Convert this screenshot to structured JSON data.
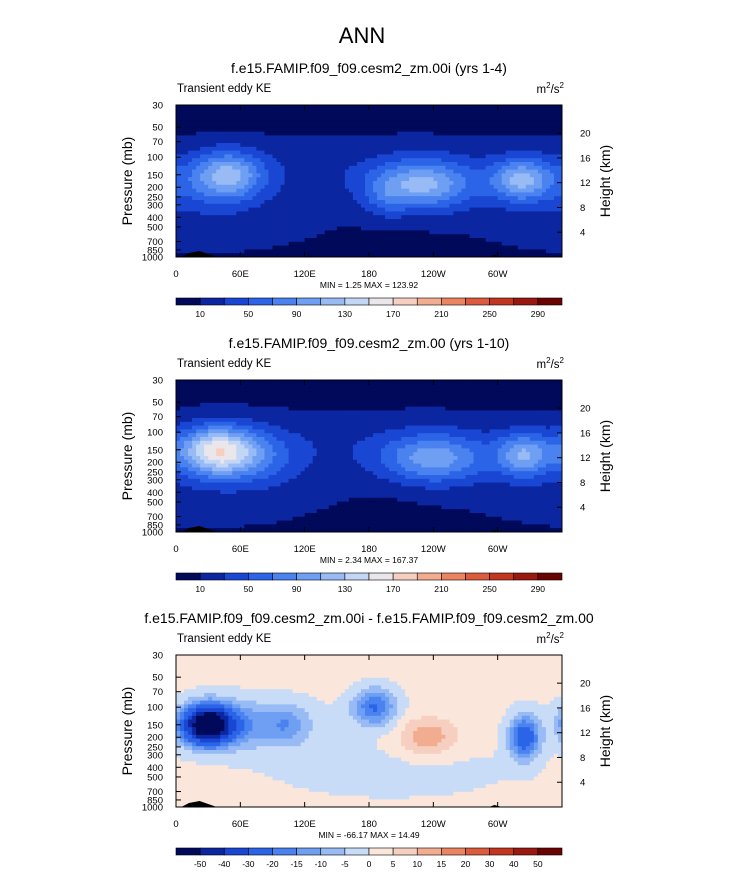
{
  "figure": {
    "title": "ANN"
  },
  "colors": {
    "abs": [
      "#00095a",
      "#0b26a0",
      "#1a46d4",
      "#2c64e8",
      "#4a82f0",
      "#6f9ff3",
      "#98bbf5",
      "#c2d6f6",
      "#eae6ea",
      "#f6cfc0",
      "#f2ac90",
      "#ea8461",
      "#dc5b3c",
      "#c2351e",
      "#9a1810",
      "#6a0403"
    ],
    "diff": [
      "#00095a",
      "#0b26a0",
      "#1a46d4",
      "#2c64e8",
      "#4a82f0",
      "#6f9ff3",
      "#98bbf5",
      "#c8dcf8",
      "#fbe6dc",
      "#f6cfc0",
      "#f2ac90",
      "#ea8461",
      "#dc5b3c",
      "#c2351e",
      "#9a1810",
      "#6a0403"
    ]
  },
  "chart_data": [
    {
      "type": "heatmap",
      "title": "f.e15.FAMIP.f09_f09.cesm2_zm.00i (yrs 1-4)",
      "subtitle_left": "Transient eddy KE",
      "units": "m2/s2",
      "xlabel": "",
      "ylabel": "Pressure (mb)",
      "y2label": "Height (km)",
      "x_ticks": [
        "0",
        "60E",
        "120E",
        "180",
        "120W",
        "60W"
      ],
      "y_ticks": [
        "30",
        "50",
        "70",
        "100",
        "150",
        "200",
        "250",
        "300",
        "400",
        "500",
        "700",
        "850",
        "1000"
      ],
      "y2_ticks": [
        "20",
        "16",
        "12",
        "8",
        "4"
      ],
      "stats": "MIN =   1.25  MAX = 123.92",
      "colorbar_labels": [
        "10",
        "50",
        "90",
        "130",
        "170",
        "210",
        "250",
        "290"
      ],
      "levels": [
        10,
        30,
        50,
        70,
        90,
        110,
        130,
        150,
        170,
        190,
        210,
        230,
        250,
        270,
        290
      ],
      "background_value": 3,
      "features": [
        {
          "lon": 180,
          "p": 130,
          "sx": 185,
          "sy": 0.55,
          "amp": 18
        },
        {
          "lon": 25,
          "p": 400,
          "sx": 100,
          "sy": 0.7,
          "amp": 14
        },
        {
          "lon": 50,
          "p": 150,
          "sx": 22,
          "sy": 0.38,
          "amp": 82
        },
        {
          "lon": 25,
          "p": 180,
          "sx": 35,
          "sy": 0.45,
          "amp": 30
        },
        {
          "lon": 230,
          "p": 190,
          "sx": 33,
          "sy": 0.4,
          "amp": 98
        },
        {
          "lon": 195,
          "p": 260,
          "sx": 14,
          "sy": 0.35,
          "amp": 25
        },
        {
          "lon": 322,
          "p": 170,
          "sx": 20,
          "sy": 0.35,
          "amp": 92
        }
      ]
    },
    {
      "type": "heatmap",
      "title": "f.e15.FAMIP.f09_f09.cesm2_zm.00 (yrs 1-10)",
      "subtitle_left": "Transient eddy KE",
      "units": "m2/s2",
      "xlabel": "",
      "ylabel": "Pressure (mb)",
      "y2label": "Height (km)",
      "x_ticks": [
        "0",
        "60E",
        "120E",
        "180",
        "120W",
        "60W"
      ],
      "y_ticks": [
        "30",
        "50",
        "70",
        "100",
        "150",
        "200",
        "250",
        "300",
        "400",
        "500",
        "700",
        "850",
        "1000"
      ],
      "y2_ticks": [
        "20",
        "16",
        "12",
        "8",
        "4"
      ],
      "stats": "MIN =   2.34  MAX = 167.37",
      "colorbar_labels": [
        "10",
        "50",
        "90",
        "130",
        "170",
        "210",
        "250",
        "290"
      ],
      "levels": [
        10,
        30,
        50,
        70,
        90,
        110,
        130,
        150,
        170,
        190,
        210,
        230,
        250,
        270,
        290
      ],
      "background_value": 3,
      "features": [
        {
          "lon": 180,
          "p": 130,
          "sx": 185,
          "sy": 0.55,
          "amp": 18
        },
        {
          "lon": 25,
          "p": 400,
          "sx": 100,
          "sy": 0.7,
          "amp": 14
        },
        {
          "lon": 38,
          "p": 155,
          "sx": 26,
          "sy": 0.4,
          "amp": 140
        },
        {
          "lon": 80,
          "p": 180,
          "sx": 28,
          "sy": 0.45,
          "amp": 35
        },
        {
          "lon": 240,
          "p": 185,
          "sx": 35,
          "sy": 0.4,
          "amp": 84
        },
        {
          "lon": 325,
          "p": 170,
          "sx": 18,
          "sy": 0.35,
          "amp": 88
        }
      ]
    },
    {
      "type": "heatmap",
      "title": "f.e15.FAMIP.f09_f09.cesm2_zm.00i - f.e15.FAMIP.f09_f09.cesm2_zm.00",
      "subtitle_left": "Transient eddy KE",
      "units": "m2/s2",
      "xlabel": "",
      "ylabel": "Pressure (mb)",
      "y2label": "Height (km)",
      "x_ticks": [
        "0",
        "60E",
        "120E",
        "180",
        "120W",
        "60W"
      ],
      "y_ticks": [
        "30",
        "50",
        "70",
        "100",
        "150",
        "200",
        "250",
        "300",
        "400",
        "500",
        "700",
        "850",
        "1000"
      ],
      "y2_ticks": [
        "20",
        "16",
        "12",
        "8",
        "4"
      ],
      "stats": "MIN = -66.17  MAX =  14.49",
      "colorbar_labels": [
        "-50",
        "-40",
        "-30",
        "-20",
        "-15",
        "-10",
        "-5",
        "0",
        "5",
        "10",
        "15",
        "20",
        "30",
        "40",
        "50"
      ],
      "levels": [
        -50,
        -40,
        -30,
        -20,
        -15,
        -10,
        -5,
        0,
        5,
        10,
        15,
        20,
        30,
        40,
        50
      ],
      "background_value": 1.5,
      "features": [
        {
          "lon": 30,
          "p": 150,
          "sx": 16,
          "sy": 0.3,
          "amp": -66
        },
        {
          "lon": 70,
          "p": 150,
          "sx": 40,
          "sy": 0.4,
          "amp": -14
        },
        {
          "lon": 105,
          "p": 150,
          "sx": 12,
          "sy": 0.3,
          "amp": -7
        },
        {
          "lon": 185,
          "p": 100,
          "sx": 14,
          "sy": 0.3,
          "amp": -22
        },
        {
          "lon": 325,
          "p": 200,
          "sx": 10,
          "sy": 0.35,
          "amp": -28
        },
        {
          "lon": 235,
          "p": 200,
          "sx": 18,
          "sy": 0.3,
          "amp": 13
        },
        {
          "lon": 200,
          "p": 450,
          "sx": 90,
          "sy": 0.5,
          "amp": -3
        }
      ]
    }
  ]
}
